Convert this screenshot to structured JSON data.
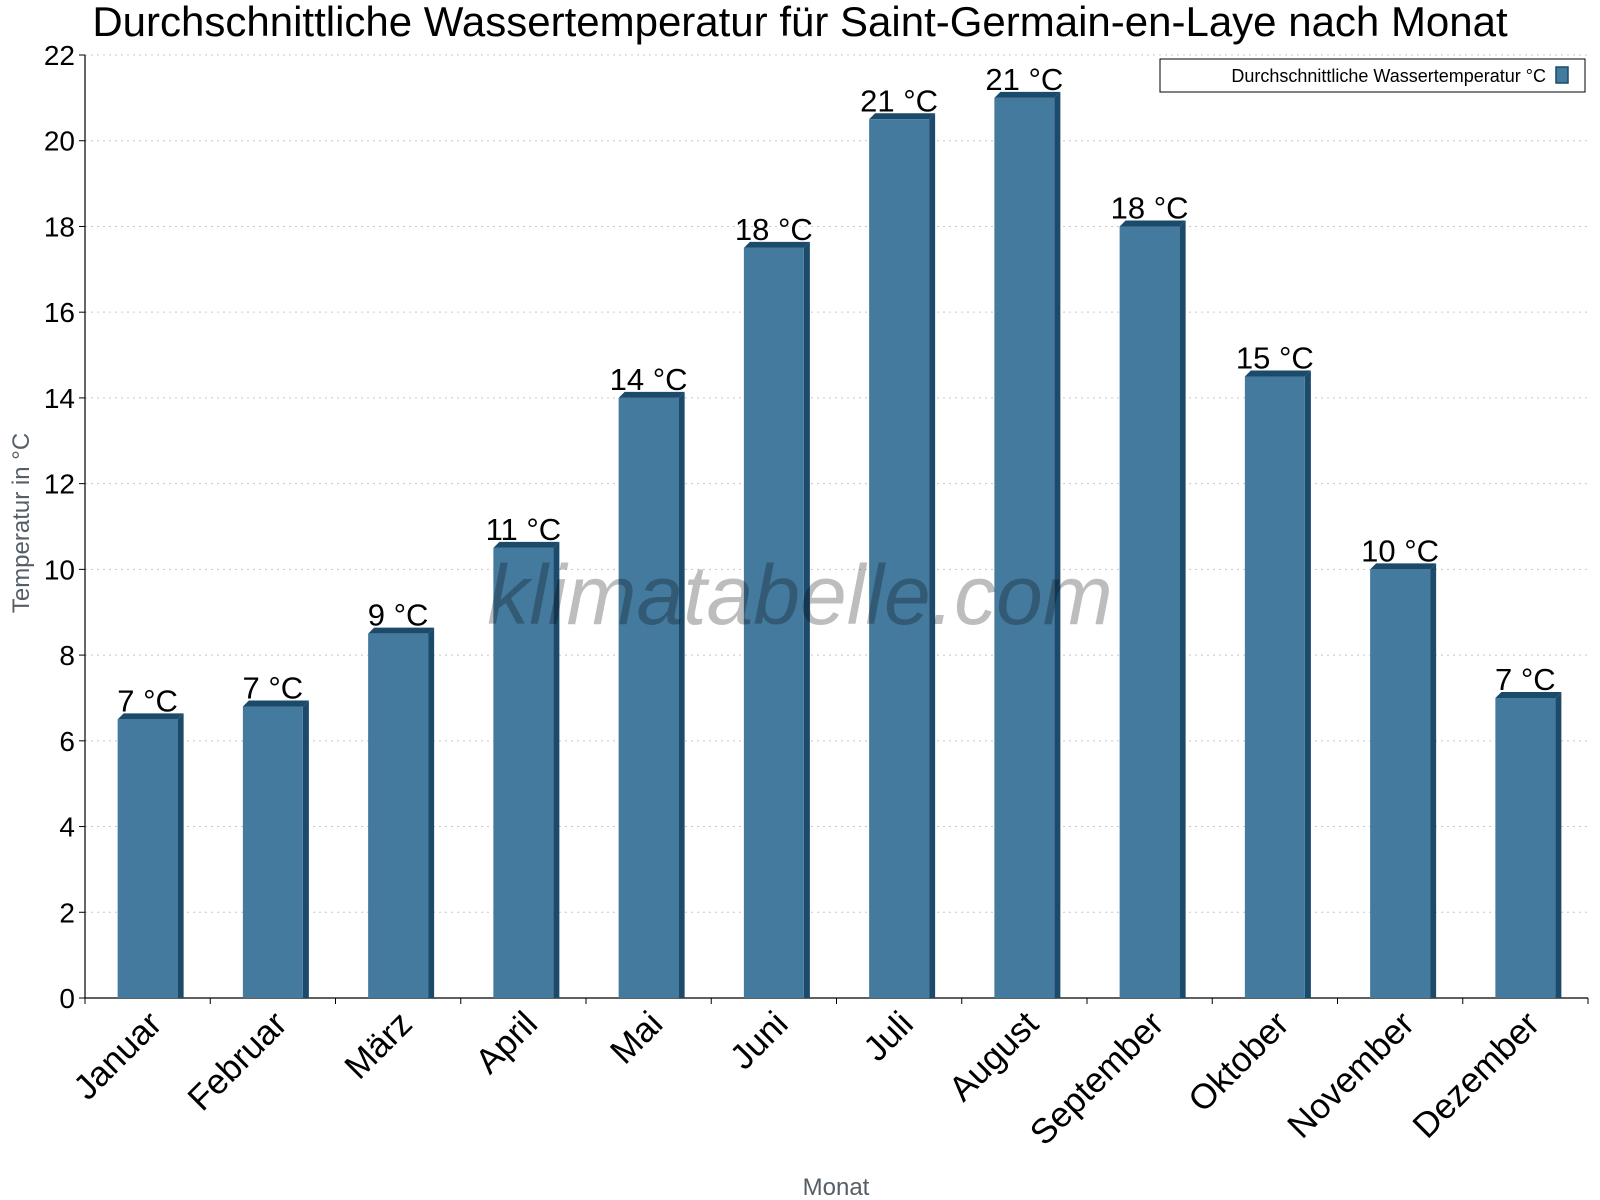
{
  "chart_data": {
    "type": "bar",
    "title": "Durchschnittliche Wassertemperatur für Saint-Germain-en-Laye nach Monat",
    "xlabel": "Monat",
    "ylabel": "Temperatur in °C",
    "ylim": [
      0,
      22
    ],
    "yticks": [
      0,
      2,
      4,
      6,
      8,
      10,
      12,
      14,
      16,
      18,
      20,
      22
    ],
    "grid": true,
    "legend_position": "top-right",
    "categories": [
      "Januar",
      "Februar",
      "März",
      "April",
      "Mai",
      "Juni",
      "Juli",
      "August",
      "September",
      "Oktober",
      "November",
      "Dezember"
    ],
    "series": [
      {
        "name": "Durchschnittliche Wassertemperatur °C",
        "values": [
          6.5,
          6.8,
          8.5,
          10.5,
          14.0,
          17.5,
          20.5,
          21.0,
          18.0,
          14.5,
          10.0,
          7.0
        ],
        "labels": [
          "7 °C",
          "7 °C",
          "9 °C",
          "11 °C",
          "14 °C",
          "18 °C",
          "21 °C",
          "21 °C",
          "18 °C",
          "15 °C",
          "10 °C",
          "7 °C"
        ],
        "color": "#447a9e",
        "side_color": "#1b4a6b"
      }
    ],
    "watermark": "klimatabelle.com"
  }
}
